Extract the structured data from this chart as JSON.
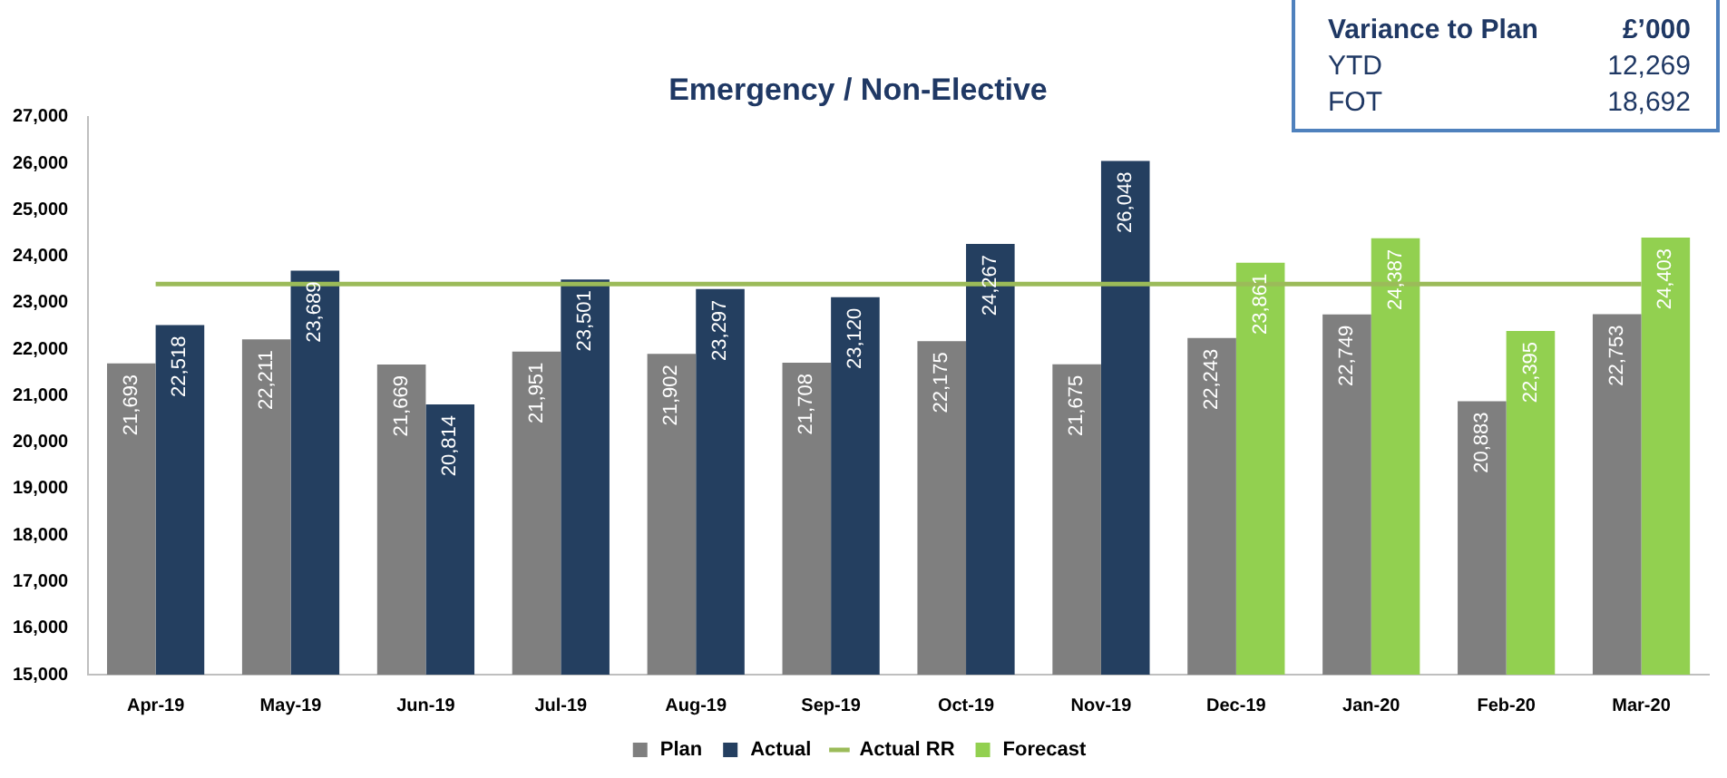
{
  "chart_data": {
    "type": "bar",
    "title": "Emergency / Non-Elective",
    "categories": [
      "Apr-19",
      "May-19",
      "Jun-19",
      "Jul-19",
      "Aug-19",
      "Sep-19",
      "Oct-19",
      "Nov-19",
      "Dec-19",
      "Jan-20",
      "Feb-20",
      "Mar-20"
    ],
    "series": [
      {
        "name": "Plan",
        "color": "#7f7f7f",
        "values": [
          21693,
          22211,
          21669,
          21951,
          21902,
          21708,
          22175,
          21675,
          22243,
          22749,
          20883,
          22753
        ],
        "value_labels": [
          "21,693",
          "22,211",
          "21,669",
          "21,951",
          "21,902",
          "21,708",
          "22,175",
          "21,675",
          "22,243",
          "22,749",
          "20,883",
          "22,753"
        ]
      },
      {
        "name": "Actual",
        "color": "#243f60",
        "values": [
          22518,
          23689,
          20814,
          23501,
          23297,
          23120,
          24267,
          26048,
          null,
          null,
          null,
          null
        ],
        "value_labels": [
          "22,518",
          "23,689",
          "20,814",
          "23,501",
          "23,297",
          "23,120",
          "24,267",
          "26,048",
          null,
          null,
          null,
          null
        ]
      },
      {
        "name": "Actual RR",
        "type": "line",
        "color": "#9bbb59",
        "values": [
          23400,
          23400,
          23400,
          23400,
          23400,
          23400,
          23400,
          23400,
          23400,
          23400,
          23400,
          23400
        ]
      },
      {
        "name": "Forecast",
        "color": "#92d050",
        "values": [
          null,
          null,
          null,
          null,
          null,
          null,
          null,
          null,
          23861,
          24387,
          22395,
          24403
        ],
        "value_labels": [
          null,
          null,
          null,
          null,
          null,
          null,
          null,
          null,
          "23,861",
          "24,387",
          "22,395",
          "24,403"
        ]
      }
    ],
    "ylim": [
      15000,
      27000
    ],
    "yticks": [
      {
        "value": 15000,
        "label": "15,000"
      },
      {
        "value": 16000,
        "label": "16,000"
      },
      {
        "value": 17000,
        "label": "17,000"
      },
      {
        "value": 18000,
        "label": "18,000"
      },
      {
        "value": 19000,
        "label": "19,000"
      },
      {
        "value": 20000,
        "label": "20,000"
      },
      {
        "value": 21000,
        "label": "21,000"
      },
      {
        "value": 22000,
        "label": "22,000"
      },
      {
        "value": 23000,
        "label": "23,000"
      },
      {
        "value": 24000,
        "label": "24,000"
      },
      {
        "value": 25000,
        "label": "25,000"
      },
      {
        "value": 26000,
        "label": "26,000"
      },
      {
        "value": 27000,
        "label": "27,000"
      }
    ],
    "legend": "bottom",
    "marker": "none",
    "annotations": [
      "Variance to Plan",
      "£’000",
      "YTD",
      "12,269",
      "FOT",
      "18,692"
    ]
  }
}
